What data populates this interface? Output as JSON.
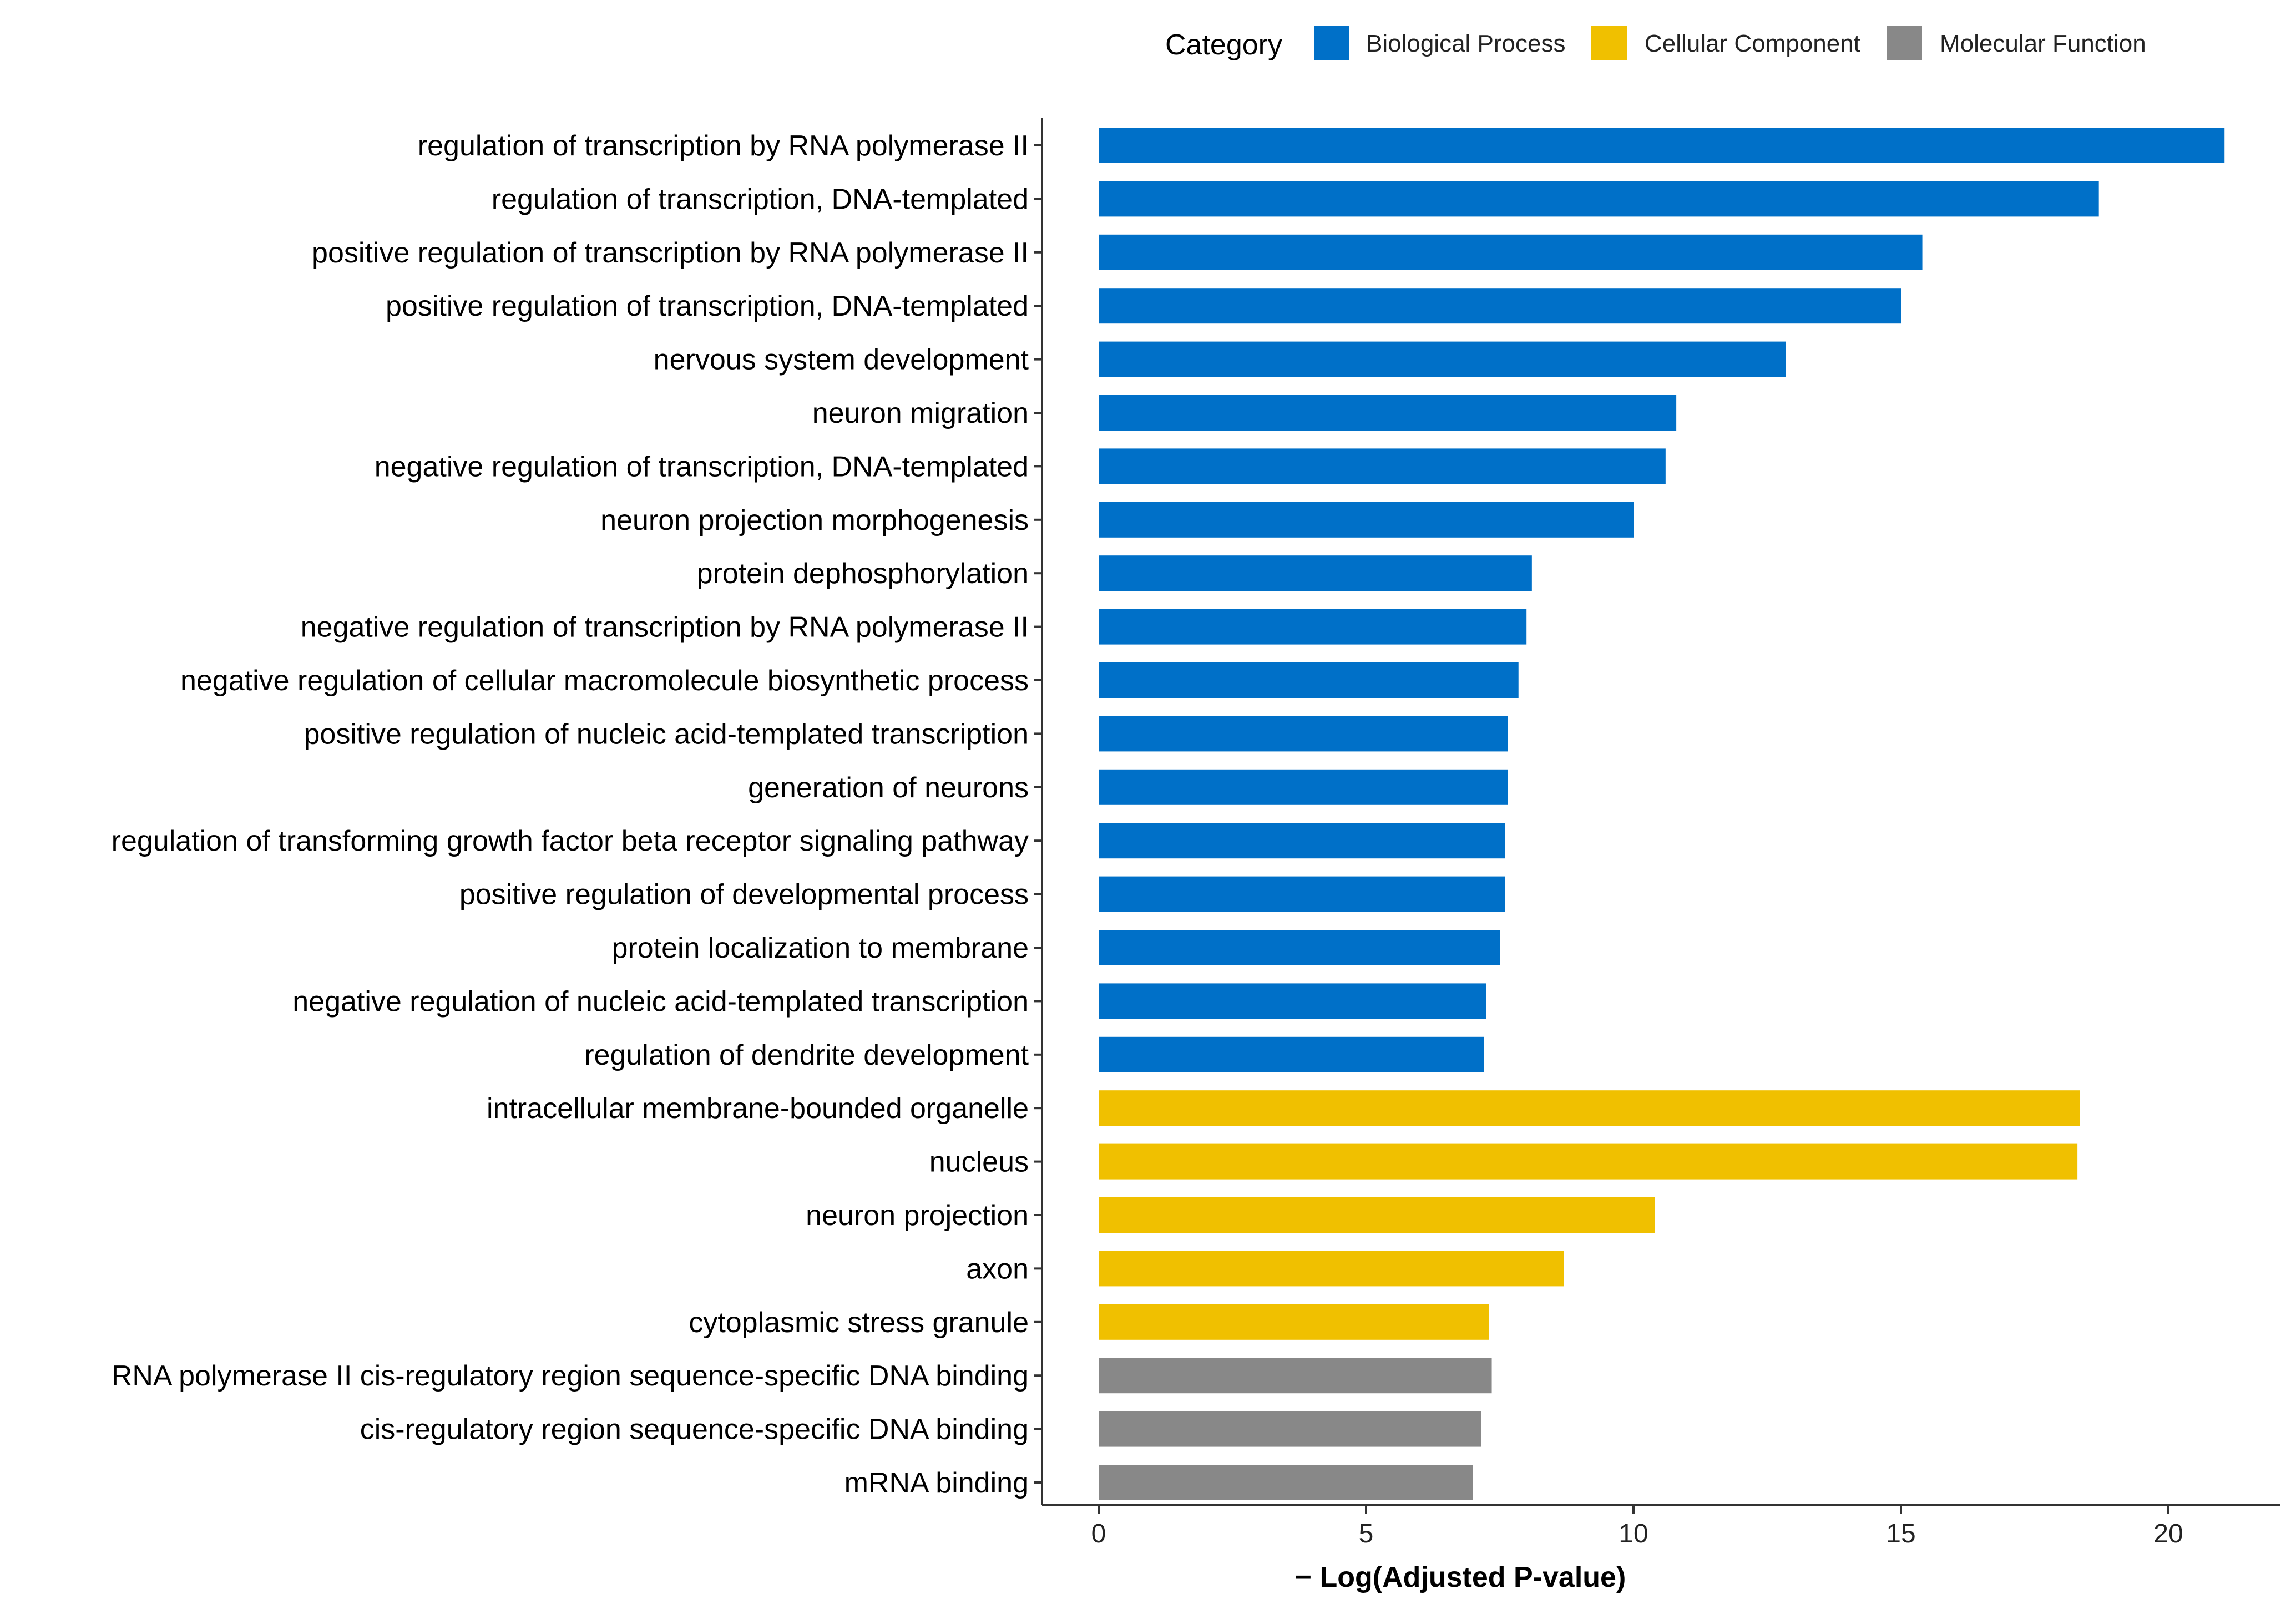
{
  "chart_data": {
    "type": "bar",
    "orientation": "horizontal",
    "title": "",
    "xlabel": "− Log(Adjusted P-value)",
    "ylabel": "",
    "xlim": [
      -1,
      22
    ],
    "x_ticks": [
      0,
      5,
      10,
      15,
      20
    ],
    "grid": false,
    "legend": {
      "title": "Category",
      "position": "top",
      "entries": [
        {
          "name": "Biological Process",
          "color": "#0070C8"
        },
        {
          "name": "Cellular Component",
          "color": "#F0C000"
        },
        {
          "name": "Molecular Function",
          "color": "#888888"
        }
      ]
    },
    "bars": [
      {
        "label": "regulation of transcription by RNA polymerase II",
        "value": 21.05,
        "category": "Biological Process"
      },
      {
        "label": "regulation of transcription, DNA-templated",
        "value": 18.7,
        "category": "Biological Process"
      },
      {
        "label": "positive regulation of transcription by RNA polymerase II",
        "value": 15.4,
        "category": "Biological Process"
      },
      {
        "label": "positive regulation of transcription, DNA-templated",
        "value": 15.0,
        "category": "Biological Process"
      },
      {
        "label": "nervous system development",
        "value": 12.85,
        "category": "Biological Process"
      },
      {
        "label": "neuron migration",
        "value": 10.8,
        "category": "Biological Process"
      },
      {
        "label": "negative regulation of transcription, DNA-templated",
        "value": 10.6,
        "category": "Biological Process"
      },
      {
        "label": "neuron projection morphogenesis",
        "value": 10.0,
        "category": "Biological Process"
      },
      {
        "label": "protein dephosphorylation",
        "value": 8.1,
        "category": "Biological Process"
      },
      {
        "label": "negative regulation of transcription by RNA polymerase II",
        "value": 8.0,
        "category": "Biological Process"
      },
      {
        "label": "negative regulation of cellular macromolecule biosynthetic process",
        "value": 7.85,
        "category": "Biological Process"
      },
      {
        "label": "positive regulation of nucleic acid-templated transcription",
        "value": 7.65,
        "category": "Biological Process"
      },
      {
        "label": "generation of neurons",
        "value": 7.65,
        "category": "Biological Process"
      },
      {
        "label": "regulation of transforming growth factor beta receptor signaling pathway",
        "value": 7.6,
        "category": "Biological Process"
      },
      {
        "label": "positive regulation of developmental process",
        "value": 7.6,
        "category": "Biological Process"
      },
      {
        "label": "protein localization to membrane",
        "value": 7.5,
        "category": "Biological Process"
      },
      {
        "label": "negative regulation of nucleic acid-templated transcription",
        "value": 7.25,
        "category": "Biological Process"
      },
      {
        "label": "regulation of dendrite development",
        "value": 7.2,
        "category": "Biological Process"
      },
      {
        "label": "intracellular membrane-bounded organelle",
        "value": 18.35,
        "category": "Cellular Component"
      },
      {
        "label": "nucleus",
        "value": 18.3,
        "category": "Cellular Component"
      },
      {
        "label": "neuron projection",
        "value": 10.4,
        "category": "Cellular Component"
      },
      {
        "label": "axon",
        "value": 8.7,
        "category": "Cellular Component"
      },
      {
        "label": "cytoplasmic stress granule",
        "value": 7.3,
        "category": "Cellular Component"
      },
      {
        "label": "RNA polymerase II cis-regulatory region sequence-specific DNA binding",
        "value": 7.35,
        "category": "Molecular Function"
      },
      {
        "label": "cis-regulatory region sequence-specific DNA binding",
        "value": 7.15,
        "category": "Molecular Function"
      },
      {
        "label": "mRNA binding",
        "value": 7.0,
        "category": "Molecular Function"
      }
    ]
  }
}
